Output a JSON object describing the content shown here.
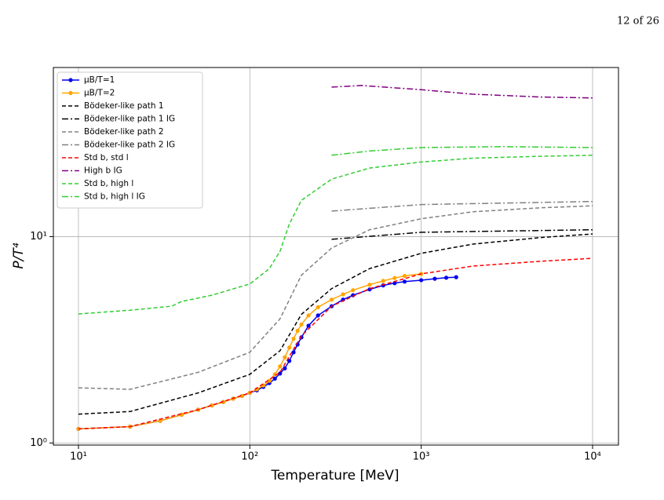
{
  "header": {
    "page": "12 of 26"
  },
  "chart_data": {
    "type": "line",
    "xlabel": "Temperature [MeV]",
    "ylabel": "P/T⁴",
    "xscale": "log",
    "yscale": "log",
    "grid": true,
    "legend": "upper left",
    "xlim": [
      7.14,
      14160
    ],
    "ylim": [
      0.977,
      66
    ],
    "xticks": [
      {
        "value": 10,
        "label": "10¹"
      },
      {
        "value": 100,
        "label": "10²"
      },
      {
        "value": 1000,
        "label": "10³"
      },
      {
        "value": 10000,
        "label": "10⁴"
      }
    ],
    "yticks": [
      {
        "value": 1,
        "label": "10⁰"
      },
      {
        "value": 10,
        "label": "10¹"
      }
    ],
    "series": [
      {
        "name": "μB/T=1",
        "color": "#0000ee",
        "style": "solid",
        "marker": true,
        "x": [
          10,
          20,
          30,
          40,
          50,
          60,
          70,
          80,
          90,
          100,
          110,
          120,
          130,
          140,
          150,
          160,
          170,
          180,
          190,
          200,
          220,
          250,
          300,
          350,
          400,
          500,
          600,
          700,
          800,
          1000,
          1200,
          1400,
          1600
        ],
        "values": [
          1.17,
          1.2,
          1.28,
          1.37,
          1.45,
          1.52,
          1.58,
          1.64,
          1.69,
          1.75,
          1.8,
          1.87,
          1.95,
          2.05,
          2.17,
          2.3,
          2.5,
          2.75,
          3.0,
          3.25,
          3.7,
          4.15,
          4.6,
          4.95,
          5.2,
          5.55,
          5.8,
          5.95,
          6.05,
          6.15,
          6.25,
          6.32,
          6.36
        ]
      },
      {
        "name": "μB/T=2",
        "color": "#ffa500",
        "style": "solid",
        "marker": true,
        "x": [
          10,
          20,
          30,
          40,
          50,
          60,
          70,
          80,
          90,
          100,
          110,
          120,
          130,
          140,
          150,
          160,
          170,
          180,
          190,
          200,
          220,
          250,
          300,
          350,
          400,
          500,
          600,
          700,
          800,
          1000
        ],
        "values": [
          1.17,
          1.2,
          1.28,
          1.37,
          1.45,
          1.52,
          1.58,
          1.64,
          1.69,
          1.75,
          1.82,
          1.9,
          2.0,
          2.15,
          2.35,
          2.6,
          2.9,
          3.2,
          3.5,
          3.75,
          4.15,
          4.55,
          4.95,
          5.25,
          5.5,
          5.85,
          6.1,
          6.3,
          6.45,
          6.6
        ]
      },
      {
        "name": "Bödeker-like path 1",
        "color": "#000000",
        "style": "dashed",
        "marker": false,
        "x": [
          10,
          20,
          50,
          100,
          150,
          200,
          300,
          500,
          1000,
          2000,
          5000,
          10000
        ],
        "values": [
          1.38,
          1.42,
          1.75,
          2.15,
          2.8,
          4.2,
          5.6,
          7.0,
          8.3,
          9.2,
          9.9,
          10.3
        ]
      },
      {
        "name": "Bödeker-like path 1 IG",
        "color": "#000000",
        "style": "dashdot",
        "marker": false,
        "x": [
          300,
          1000,
          10000
        ],
        "values": [
          9.7,
          10.5,
          10.8
        ]
      },
      {
        "name": "Bödeker-like path 2",
        "color": "#808080",
        "style": "dashed",
        "marker": false,
        "x": [
          10,
          20,
          50,
          100,
          150,
          200,
          300,
          500,
          1000,
          2000,
          5000,
          10000
        ],
        "values": [
          1.85,
          1.82,
          2.2,
          2.75,
          4.0,
          6.5,
          8.8,
          10.8,
          12.2,
          13.2,
          13.8,
          14.1
        ]
      },
      {
        "name": "Bödeker-like path 2 IG",
        "color": "#808080",
        "style": "dashdot",
        "marker": false,
        "x": [
          300,
          1000,
          10000
        ],
        "values": [
          13.3,
          14.3,
          14.8
        ]
      },
      {
        "name": "Std b, std l",
        "color": "#ff0000",
        "style": "dashed",
        "marker": false,
        "x": [
          10,
          20,
          50,
          100,
          150,
          200,
          300,
          500,
          1000,
          2000,
          5000,
          10000
        ],
        "values": [
          1.17,
          1.2,
          1.45,
          1.75,
          2.2,
          3.3,
          4.6,
          5.6,
          6.6,
          7.2,
          7.6,
          7.85
        ]
      },
      {
        "name": "High b IG",
        "color": "#800080",
        "style": "dashdot",
        "marker": false,
        "x": [
          300,
          450,
          1000,
          2000,
          5000,
          10000
        ],
        "values": [
          53,
          54,
          51.5,
          49,
          47.5,
          47
        ]
      },
      {
        "name": "Std b, high l",
        "color": "#32cd32",
        "style": "dashed",
        "marker": false,
        "x": [
          10,
          20,
          35,
          40,
          60,
          100,
          130,
          150,
          170,
          200,
          300,
          500,
          1000,
          2000,
          5000,
          10000
        ],
        "values": [
          4.22,
          4.4,
          4.6,
          4.85,
          5.2,
          5.9,
          7.0,
          8.5,
          11.5,
          15,
          19,
          21.5,
          23,
          24,
          24.5,
          24.8
        ]
      },
      {
        "name": "Std b, high l IG",
        "color": "#32cd32",
        "style": "dashdot",
        "marker": false,
        "x": [
          300,
          500,
          1000,
          3000,
          10000
        ],
        "values": [
          24.8,
          26,
          27,
          27.3,
          27
        ]
      }
    ]
  }
}
